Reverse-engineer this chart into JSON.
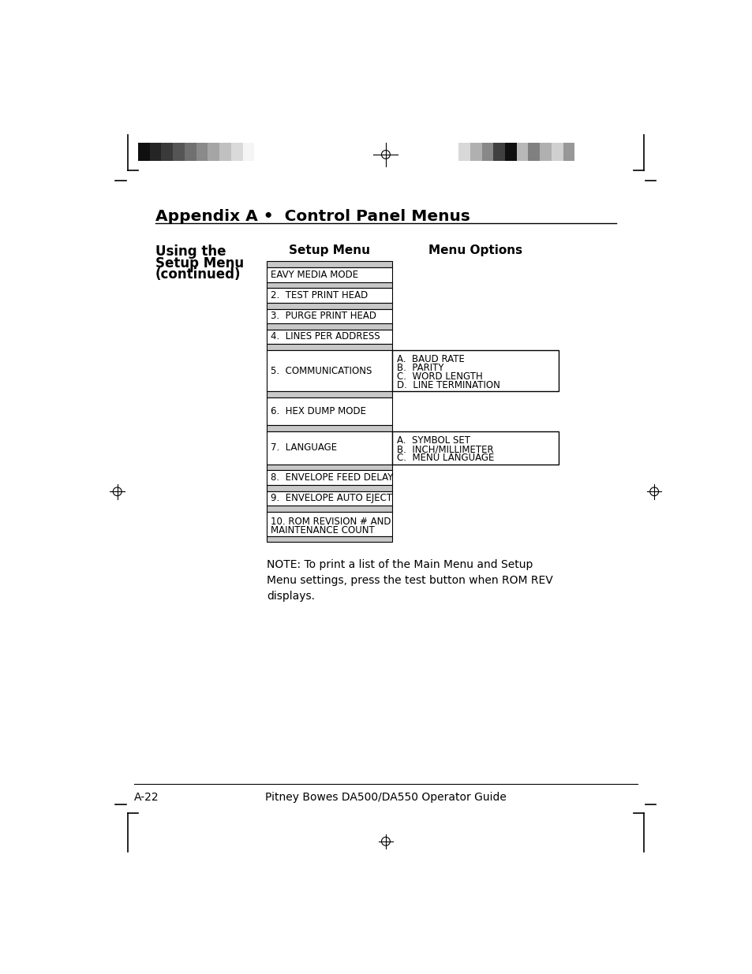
{
  "page_title": "Appendix A •  Control Panel Menus",
  "section_title_line1": "Using the",
  "section_title_line2": "Setup Menu",
  "section_title_line3": "(continued)",
  "col1_header": "Setup Menu",
  "col2_header": "Menu Options",
  "bg_color": "#ffffff",
  "gray_color": "#c8c8c8",
  "menu_items": [
    {
      "label": "EAVY MEDIA MODE",
      "label2": "",
      "has_submenu": false,
      "submenu": []
    },
    {
      "label": "2.  TEST PRINT HEAD",
      "label2": "",
      "has_submenu": false,
      "submenu": []
    },
    {
      "label": "3.  PURGE PRINT HEAD",
      "label2": "",
      "has_submenu": false,
      "submenu": []
    },
    {
      "label": "4.  LINES PER ADDRESS",
      "label2": "",
      "has_submenu": false,
      "submenu": []
    },
    {
      "label": "5.  COMMUNICATIONS",
      "label2": "",
      "has_submenu": true,
      "submenu": [
        "A.  BAUD RATE",
        "B.  PARITY",
        "C.  WORD LENGTH",
        "D.  LINE TERMINATION"
      ]
    },
    {
      "label": "6.  HEX DUMP MODE",
      "label2": "",
      "has_submenu": false,
      "submenu": []
    },
    {
      "label": "7.  LANGUAGE",
      "label2": "",
      "has_submenu": true,
      "submenu": [
        "A.  SYMBOL SET",
        "B.  INCH/MILLIMETER",
        "C.  MENU LANGUAGE"
      ]
    },
    {
      "label": "8.  ENVELOPE FEED DELAY",
      "label2": "",
      "has_submenu": false,
      "submenu": []
    },
    {
      "label": "9.  ENVELOPE AUTO EJECT",
      "label2": "",
      "has_submenu": false,
      "submenu": []
    },
    {
      "label": "10. ROM REVISION # AND",
      "label2": "    MAINTENANCE COUNT",
      "has_submenu": false,
      "submenu": []
    }
  ],
  "note_text": "NOTE: To print a list of the Main Menu and Setup\nMenu settings, press the test button when ROM REV\ndisplays.",
  "footer_left": "A-22",
  "footer_right": "Pitney Bowes DA500/DA550 Operator Guide",
  "gs_left_colors": [
    "#101010",
    "#252525",
    "#3a3a3a",
    "#555555",
    "#707070",
    "#8a8a8a",
    "#a5a5a5",
    "#c0c0c0",
    "#dadada",
    "#f5f5f5"
  ],
  "gs_right_colors": [
    "#d8d8d8",
    "#b0b0b0",
    "#888888",
    "#404040",
    "#101010",
    "#b8b8b8",
    "#808080",
    "#b0b0b0",
    "#d0d0d0",
    "#989898"
  ]
}
